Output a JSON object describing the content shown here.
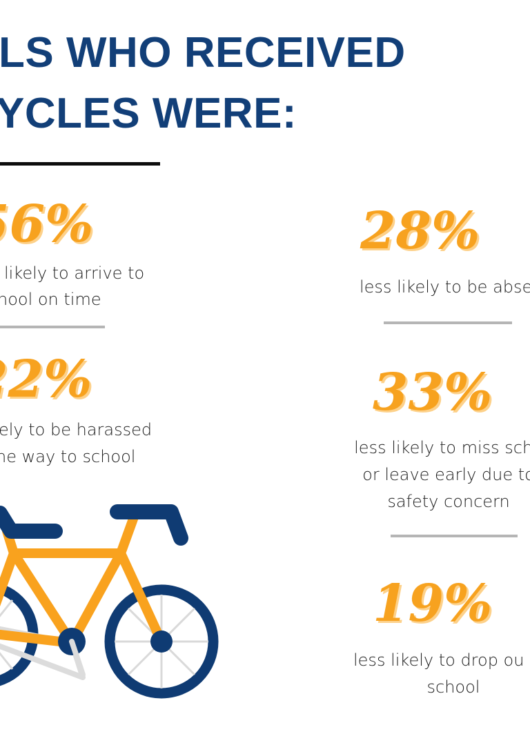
{
  "header": {
    "title_line1": "LS WHO RECEIVED",
    "title_line2": "YCLES WERE:"
  },
  "stats": {
    "left_1": {
      "value": "56%",
      "line1": "likely to arrive to",
      "line2": "hool on time"
    },
    "left_2": {
      "value": "22%",
      "line1": "ely to be harassed",
      "line2": "ne way to school"
    },
    "right_1": {
      "value": "28%",
      "line1": "less likely to be abse"
    },
    "right_2": {
      "value": "33%",
      "line1": "less likely to miss scho",
      "line2": "or leave early due to",
      "line3": "safety concern"
    },
    "right_3": {
      "value": "19%",
      "line1": "less likely to drop ou",
      "line2": "school"
    }
  },
  "colors": {
    "title_blue": "#123f78",
    "stat_orange": "#f7a21f",
    "bike_frame_orange": "#f9a21e",
    "bike_navy": "#0f3b73",
    "divider_grey": "#b5b5b5"
  },
  "icons": {
    "illustration": "bicycle-icon"
  }
}
